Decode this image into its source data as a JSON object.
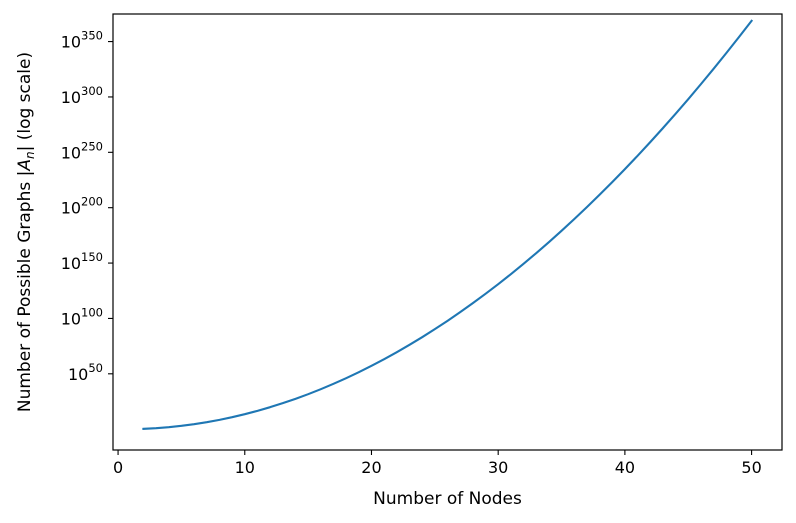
{
  "chart_data": {
    "type": "line",
    "title": "",
    "xlabel": "Number of Nodes",
    "ylabel_parts": [
      "Number of Possible Graphs |",
      "A",
      "n",
      "| (log scale)"
    ],
    "y_scale": "log",
    "xlim": [
      -0.4,
      52.4
    ],
    "ylim_log10": [
      -18.8,
      374.9
    ],
    "x_ticks": [
      0,
      10,
      20,
      30,
      40,
      50
    ],
    "x_tick_labels": [
      "0",
      "10",
      "20",
      "30",
      "40",
      "50"
    ],
    "y_ticks_log10": [
      50,
      100,
      150,
      200,
      250,
      300,
      350
    ],
    "y_tick_base": "10",
    "y_tick_exponents": [
      "50",
      "100",
      "150",
      "200",
      "250",
      "300",
      "350"
    ],
    "grid": false,
    "legend": false,
    "line_color": "#1f77b4",
    "series": [
      {
        "x_start": 2,
        "x_end": 50,
        "y_log10_values": [
          0.301,
          0.903,
          1.806,
          3.01,
          4.515,
          6.321,
          8.428,
          10.836,
          13.545,
          16.556,
          19.867,
          23.48,
          27.393,
          31.608,
          36.124,
          40.94,
          46.058,
          51.477,
          57.197,
          63.218,
          69.54,
          76.163,
          83.087,
          90.312,
          97.838,
          105.665,
          113.793,
          122.222,
          130.952,
          139.983,
          149.315,
          158.948,
          168.882,
          179.117,
          189.654,
          200.491,
          211.629,
          223.068,
          234.808,
          246.85,
          259.192,
          271.835,
          284.779,
          298.024,
          311.571,
          325.418,
          339.566,
          354.015,
          368.765
        ]
      }
    ]
  }
}
